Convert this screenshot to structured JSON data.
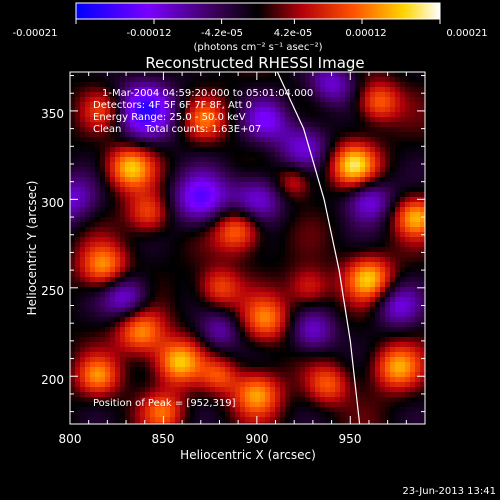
{
  "footer": {
    "timestamp": "23-Jun-2013 13:41"
  },
  "chart_data": {
    "type": "heatmap",
    "title": "Reconstructed RHESSI Image",
    "xlabel": "Heliocentric X (arcsec)",
    "ylabel": "Heliocentric Y (arcsec)",
    "xlim": [
      800,
      990
    ],
    "ylim": [
      173,
      372
    ],
    "x_ticks": [
      800,
      850,
      900,
      950
    ],
    "y_ticks": [
      200,
      250,
      300,
      350
    ],
    "colorbar": {
      "range": [
        -0.00021,
        0.00021
      ],
      "tick_values": [
        -0.00021,
        -0.00012,
        -4.2e-05,
        4.2e-05,
        0.00012,
        0.00021
      ],
      "tick_labels": [
        "-0.00021",
        "-0.00012",
        "-4.2e-05",
        "4.2e-05",
        "0.00012",
        "0.00021"
      ],
      "unit_label": "(photons cm⁻² s⁻¹ asec⁻²)"
    },
    "annotations": {
      "time": "1-Mar-2004 04:59:20.000 to 05:01:04.000",
      "detectors": "Detectors: 4F 5F 6F 7F 8F, Att 0",
      "energy": "Energy Range: 25.0 - 50.0 keV",
      "method": "Clean",
      "counts": "Total counts: 1.63E+07",
      "peak": "Position of Peak = [952,319]"
    },
    "peak": {
      "x": 952,
      "y": 319
    },
    "limb_curve": [
      [
        911,
        372
      ],
      [
        925,
        340
      ],
      [
        936,
        300
      ],
      [
        944,
        260
      ],
      [
        950,
        220
      ],
      [
        955,
        173
      ]
    ],
    "colors": {
      "background": "#000000",
      "text": "#ffffff",
      "colormap": [
        "#0000ff",
        "#7a00ff",
        "#3c005a",
        "#000000",
        "#b4000a",
        "#ff5000",
        "#ffd400",
        "#ffffff"
      ]
    }
  }
}
